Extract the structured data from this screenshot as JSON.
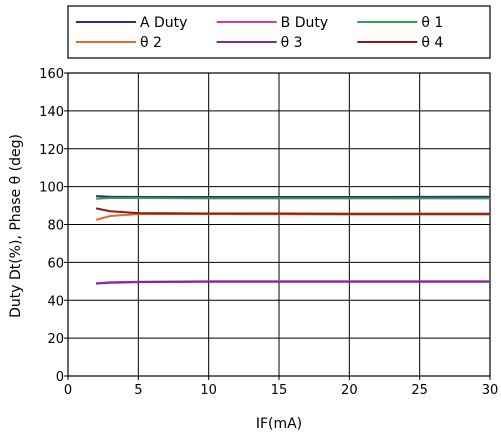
{
  "chart_data": {
    "type": "line",
    "title": "",
    "xlabel": "IF(mA)",
    "ylabel": "Duty Dt(%), Phase θ (deg)",
    "xlim": [
      0,
      30
    ],
    "ylim": [
      0,
      160
    ],
    "x_ticks": [
      0,
      5,
      10,
      15,
      20,
      25,
      30
    ],
    "y_ticks": [
      0,
      20,
      40,
      60,
      80,
      100,
      120,
      140,
      160
    ],
    "grid": true,
    "legend_position": "top",
    "series": [
      {
        "name": "A Duty",
        "color": "#2b2f6e",
        "x": [
          2,
          3,
          5,
          10,
          15,
          20,
          25,
          30
        ],
        "y": [
          95,
          94.7,
          94.5,
          94.5,
          94.5,
          94.5,
          94.6,
          94.7
        ]
      },
      {
        "name": "B Duty",
        "color": "#d63aa6",
        "x": [
          2,
          3,
          5,
          10,
          15,
          20,
          25,
          30
        ],
        "y": [
          49,
          49.5,
          49.8,
          50,
          50,
          50,
          50,
          50
        ]
      },
      {
        "name": "θ 1",
        "color": "#3a9a5b",
        "x": [
          2,
          3,
          5,
          10,
          15,
          20,
          25,
          30
        ],
        "y": [
          93.6,
          94,
          94,
          93.8,
          93.8,
          93.8,
          93.8,
          93.8
        ]
      },
      {
        "name": "θ 2",
        "color": "#e06a2c",
        "x": [
          2,
          3,
          5,
          10,
          15,
          20,
          25,
          30
        ],
        "y": [
          82.5,
          84.5,
          85.5,
          85.5,
          85.4,
          85.3,
          85.3,
          85.3
        ]
      },
      {
        "name": "θ 3",
        "color": "#7b2d9c",
        "x": [
          2,
          3,
          5,
          10,
          15,
          20,
          25,
          30
        ],
        "y": [
          48.8,
          49.2,
          49.6,
          49.8,
          49.8,
          49.8,
          49.8,
          49.8
        ]
      },
      {
        "name": "θ 4",
        "color": "#8b1a1a",
        "x": [
          2,
          3,
          5,
          10,
          15,
          20,
          25,
          30
        ],
        "y": [
          88.5,
          87,
          86,
          85.8,
          85.8,
          85.7,
          85.7,
          85.7
        ]
      }
    ]
  }
}
